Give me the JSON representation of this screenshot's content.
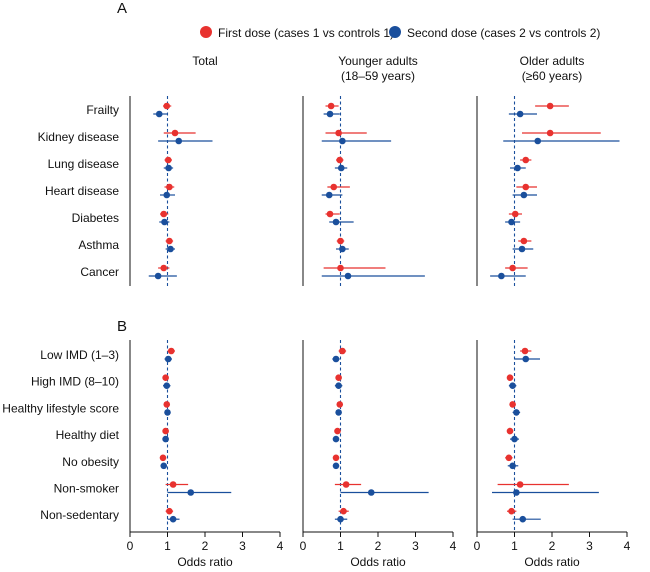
{
  "colors": {
    "first": "#e8322f",
    "second": "#1a4f9c",
    "axis": "#111111",
    "refline": "#1a4f9c"
  },
  "legend": {
    "first": "First dose (cases 1 vs controls 1)",
    "second": "Second dose (cases 2 vs controls 2)"
  },
  "chart_data": {
    "type": "forest",
    "xlabel": "Odds ratio",
    "xlim": [
      0,
      4
    ],
    "xticks": [
      "0",
      "1",
      "2",
      "3",
      "4"
    ],
    "reference": 1,
    "series": [
      {
        "key": "first",
        "name": "First dose (cases 1 vs controls 1)"
      },
      {
        "key": "second",
        "name": "Second dose (cases 2 vs controls 2)"
      }
    ],
    "panels": [
      {
        "label": "A",
        "categories": [
          "Frailty",
          "Kidney disease",
          "Lung disease",
          "Heart disease",
          "Diabetes",
          "Asthma",
          "Cancer"
        ],
        "groups": [
          {
            "title": "Total",
            "first": [
              [
                0.98,
                0.88,
                1.1
              ],
              [
                1.2,
                0.9,
                1.75
              ],
              [
                1.02,
                0.92,
                1.12
              ],
              [
                1.05,
                0.92,
                1.18
              ],
              [
                0.9,
                0.8,
                1.02
              ],
              [
                1.05,
                0.95,
                1.15
              ],
              [
                0.9,
                0.75,
                1.05
              ]
            ],
            "second": [
              [
                0.78,
                0.62,
                1.0
              ],
              [
                1.3,
                0.75,
                2.2
              ],
              [
                1.03,
                0.9,
                1.15
              ],
              [
                0.98,
                0.8,
                1.2
              ],
              [
                0.92,
                0.78,
                1.05
              ],
              [
                1.08,
                0.95,
                1.2
              ],
              [
                0.75,
                0.5,
                1.25
              ]
            ]
          },
          {
            "title": "Younger adults (18–59 years)",
            "first": [
              [
                0.75,
                0.6,
                0.95
              ],
              [
                0.95,
                0.6,
                1.7
              ],
              [
                0.98,
                0.88,
                1.08
              ],
              [
                0.82,
                0.65,
                1.25
              ],
              [
                0.72,
                0.6,
                0.98
              ],
              [
                1.0,
                0.9,
                1.1
              ],
              [
                1.0,
                0.55,
                2.2
              ]
            ],
            "second": [
              [
                0.72,
                0.55,
                0.98
              ],
              [
                1.05,
                0.5,
                2.35
              ],
              [
                1.02,
                0.85,
                1.18
              ],
              [
                0.7,
                0.5,
                1.05
              ],
              [
                0.88,
                0.7,
                1.35
              ],
              [
                1.05,
                0.88,
                1.22
              ],
              [
                1.2,
                0.5,
                3.25
              ]
            ]
          },
          {
            "title": "Older adults (≥60 years)",
            "first": [
              [
                1.95,
                1.55,
                2.45
              ],
              [
                1.95,
                1.2,
                3.3
              ],
              [
                1.3,
                1.15,
                1.45
              ],
              [
                1.3,
                1.05,
                1.6
              ],
              [
                1.02,
                0.85,
                1.2
              ],
              [
                1.25,
                1.1,
                1.45
              ],
              [
                0.95,
                0.75,
                1.35
              ]
            ],
            "second": [
              [
                1.15,
                0.85,
                1.6
              ],
              [
                1.62,
                0.7,
                3.8
              ],
              [
                1.08,
                0.88,
                1.3
              ],
              [
                1.25,
                0.95,
                1.6
              ],
              [
                0.92,
                0.75,
                1.15
              ],
              [
                1.2,
                0.95,
                1.5
              ],
              [
                0.65,
                0.35,
                1.3
              ]
            ]
          }
        ]
      },
      {
        "label": "B",
        "categories": [
          "Low IMD (1–3)",
          "High IMD (8–10)",
          "Healthy lifestyle score",
          "Healthy diet",
          "No obesity",
          "Non-smoker",
          "Non-sedentary"
        ],
        "groups": [
          {
            "title": "",
            "first": [
              [
                1.1,
                1.0,
                1.2
              ],
              [
                0.95,
                0.88,
                1.02
              ],
              [
                0.98,
                0.92,
                1.04
              ],
              [
                0.95,
                0.88,
                1.02
              ],
              [
                0.88,
                0.8,
                0.96
              ],
              [
                1.15,
                0.95,
                1.55
              ],
              [
                1.05,
                0.95,
                1.15
              ]
            ],
            "second": [
              [
                1.02,
                0.92,
                1.12
              ],
              [
                0.98,
                0.88,
                1.08
              ],
              [
                1.0,
                0.94,
                1.06
              ],
              [
                0.95,
                0.88,
                1.02
              ],
              [
                0.9,
                0.82,
                0.98
              ],
              [
                1.62,
                1.0,
                2.7
              ],
              [
                1.15,
                1.0,
                1.32
              ]
            ]
          },
          {
            "title": "",
            "first": [
              [
                1.05,
                0.95,
                1.15
              ],
              [
                0.95,
                0.88,
                1.02
              ],
              [
                0.98,
                0.92,
                1.04
              ],
              [
                0.92,
                0.85,
                1.0
              ],
              [
                0.88,
                0.8,
                0.96
              ],
              [
                1.15,
                0.85,
                1.55
              ],
              [
                1.08,
                0.95,
                1.22
              ]
            ],
            "second": [
              [
                0.88,
                0.78,
                0.98
              ],
              [
                0.95,
                0.85,
                1.05
              ],
              [
                0.95,
                0.88,
                1.02
              ],
              [
                0.88,
                0.8,
                0.96
              ],
              [
                0.88,
                0.8,
                0.96
              ],
              [
                1.82,
                1.0,
                3.35
              ],
              [
                1.0,
                0.85,
                1.18
              ]
            ]
          },
          {
            "title": "",
            "first": [
              [
                1.28,
                1.15,
                1.45
              ],
              [
                0.88,
                0.8,
                0.96
              ],
              [
                0.95,
                0.88,
                1.02
              ],
              [
                0.88,
                0.8,
                0.96
              ],
              [
                0.85,
                0.75,
                0.95
              ],
              [
                1.15,
                0.55,
                2.45
              ],
              [
                0.92,
                0.8,
                1.05
              ]
            ],
            "second": [
              [
                1.3,
                1.0,
                1.68
              ],
              [
                0.95,
                0.85,
                1.05
              ],
              [
                1.05,
                0.95,
                1.15
              ],
              [
                1.0,
                0.88,
                1.12
              ],
              [
                0.95,
                0.82,
                1.1
              ],
              [
                1.05,
                0.4,
                3.25
              ],
              [
                1.22,
                0.95,
                1.7
              ]
            ]
          }
        ]
      }
    ]
  }
}
